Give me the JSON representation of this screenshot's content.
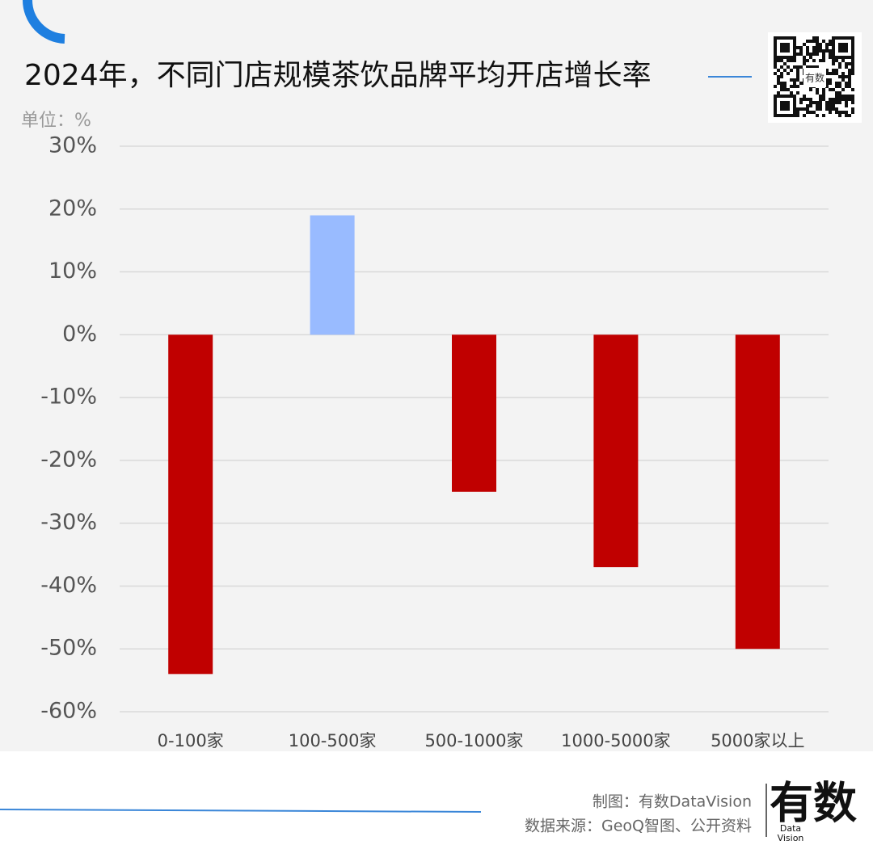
{
  "chart_data": {
    "type": "bar",
    "title": "2024年，不同门店规模茶饮品牌平均开店增长率",
    "unit_label": "单位：%",
    "categories": [
      "0-100家",
      "100-500家",
      "500-1000家",
      "1000-5000家",
      "5000家以上"
    ],
    "values": [
      -54,
      19,
      -25,
      -37,
      -50
    ],
    "colors": [
      "#c00000",
      "#99bbff",
      "#c00000",
      "#c00000",
      "#c00000"
    ],
    "ylim": [
      -60,
      30
    ],
    "yticks": [
      {
        "value": 30,
        "label": "30%"
      },
      {
        "value": 20,
        "label": "20%"
      },
      {
        "value": 10,
        "label": "10%"
      },
      {
        "value": 0,
        "label": "0%"
      },
      {
        "value": -10,
        "label": "-10%"
      },
      {
        "value": -20,
        "label": "-20%"
      },
      {
        "value": -30,
        "label": "-30%"
      },
      {
        "value": -40,
        "label": "-40%"
      },
      {
        "value": -50,
        "label": "-50%"
      },
      {
        "value": -60,
        "label": "-60%"
      }
    ],
    "grid": true
  },
  "footer": {
    "credit": "制图：有数DataVision",
    "source": "数据来源：GeoQ智图、公开资料"
  },
  "logo": {
    "main": "有数",
    "sub1": "Data",
    "sub2": "Vision"
  },
  "qr_label": "有数"
}
